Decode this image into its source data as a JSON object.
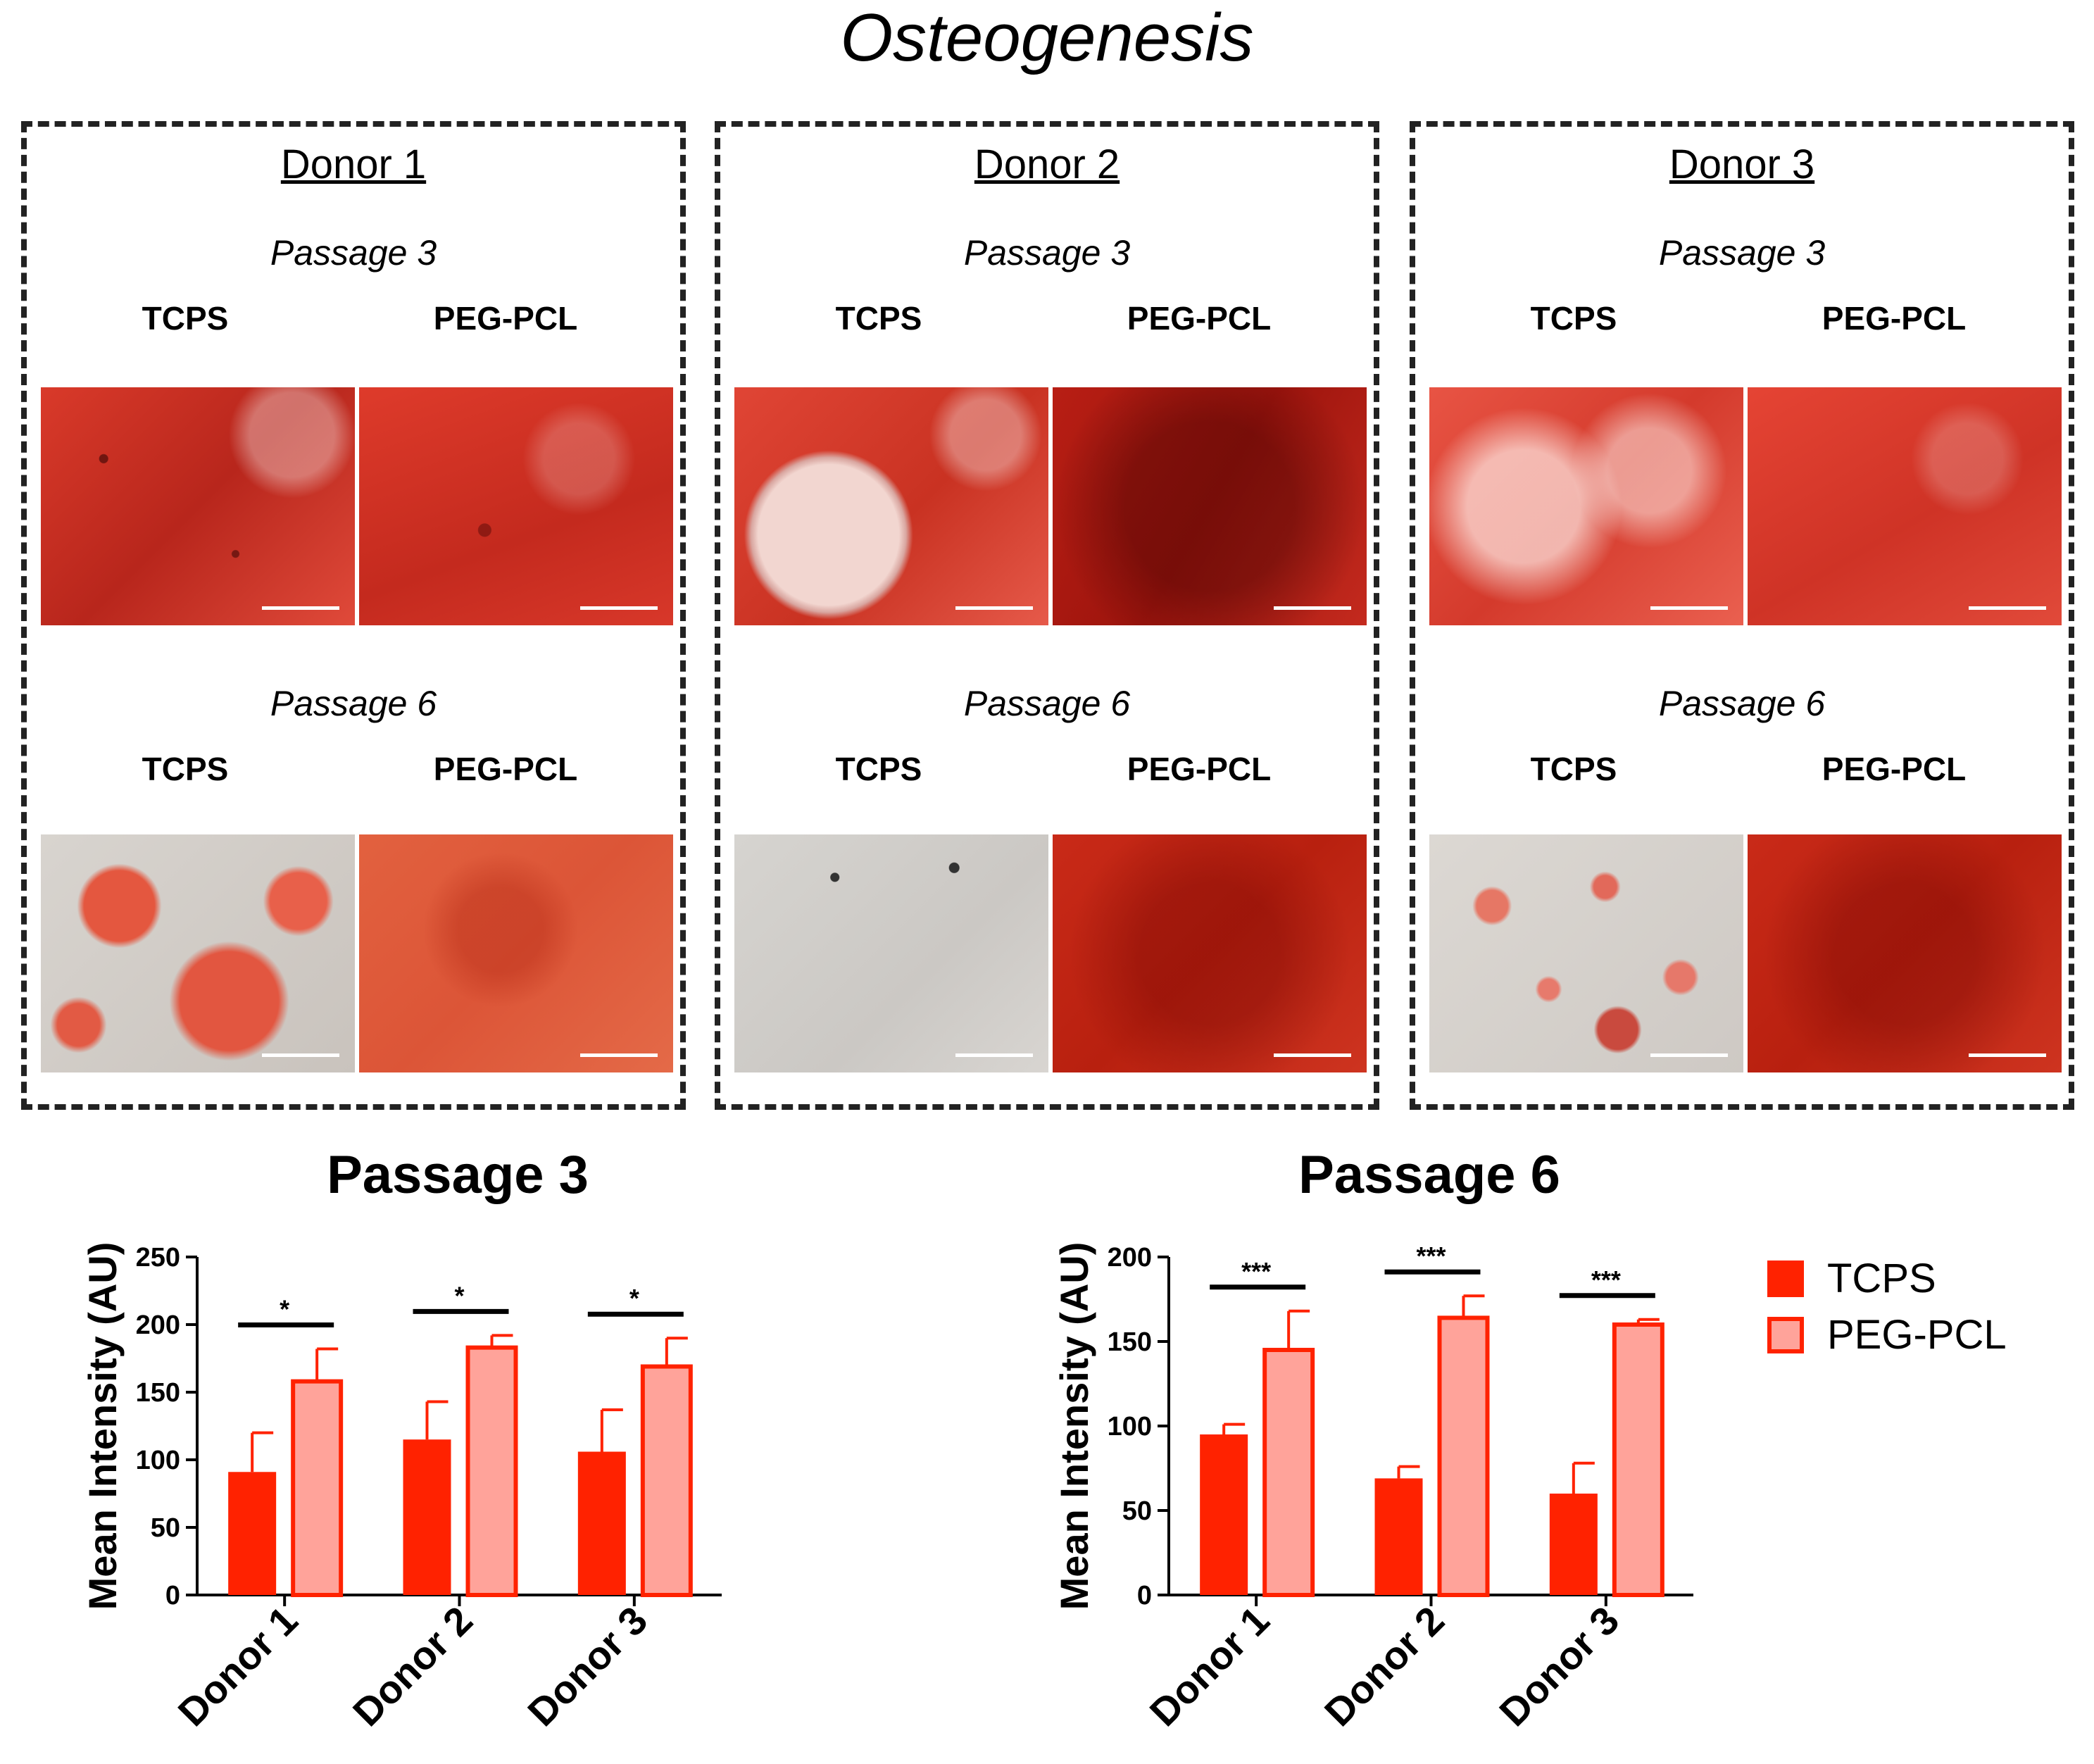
{
  "figure_title": "Osteogenesis",
  "panels": [
    {
      "donor": "Donor 1",
      "passage_a": "Passage 3",
      "passage_b": "Passage 6",
      "cond_1": "TCPS",
      "cond_2": "PEG-PCL"
    },
    {
      "donor": "Donor 2",
      "passage_a": "Passage 3",
      "passage_b": "Passage 6",
      "cond_1": "TCPS",
      "cond_2": "PEG-PCL"
    },
    {
      "donor": "Donor 3",
      "passage_a": "Passage 3",
      "passage_b": "Passage 6",
      "cond_1": "TCPS",
      "cond_2": "PEG-PCL"
    }
  ],
  "legend": {
    "tcps": "TCPS",
    "pegpcl": "PEG-PCL"
  },
  "colors": {
    "tcps": "#ff2200",
    "pegpcl": "#ffa39a",
    "pegpcl_edge": "#ff2200"
  },
  "chart_data": [
    {
      "type": "bar",
      "title": "Passage 3",
      "ylabel": "Mean Intensity (AU)",
      "xlabel": "",
      "categories": [
        "Donor 1",
        "Donor 2",
        "Donor 3"
      ],
      "ylim": [
        0,
        250
      ],
      "yticks": [
        0,
        50,
        100,
        150,
        200,
        250
      ],
      "series": [
        {
          "name": "TCPS",
          "values": [
            91,
            115,
            106
          ],
          "errors": [
            29,
            28,
            31
          ]
        },
        {
          "name": "PEG-PCL",
          "values": [
            158,
            183,
            169
          ],
          "errors": [
            24,
            9,
            21
          ]
        }
      ],
      "significance": [
        "*",
        "*",
        "*"
      ]
    },
    {
      "type": "bar",
      "title": "Passage 6",
      "ylabel": "Mean Intensity (AU)",
      "xlabel": "",
      "categories": [
        "Donor 1",
        "Donor 2",
        "Donor 3"
      ],
      "ylim": [
        0,
        200
      ],
      "yticks": [
        0,
        50,
        100,
        150,
        200
      ],
      "series": [
        {
          "name": "TCPS",
          "values": [
            95,
            69,
            60
          ],
          "errors": [
            6,
            7,
            18
          ]
        },
        {
          "name": "PEG-PCL",
          "values": [
            145,
            164,
            160
          ],
          "errors": [
            23,
            13,
            3
          ]
        }
      ],
      "significance": [
        "***",
        "***",
        "***"
      ]
    }
  ]
}
